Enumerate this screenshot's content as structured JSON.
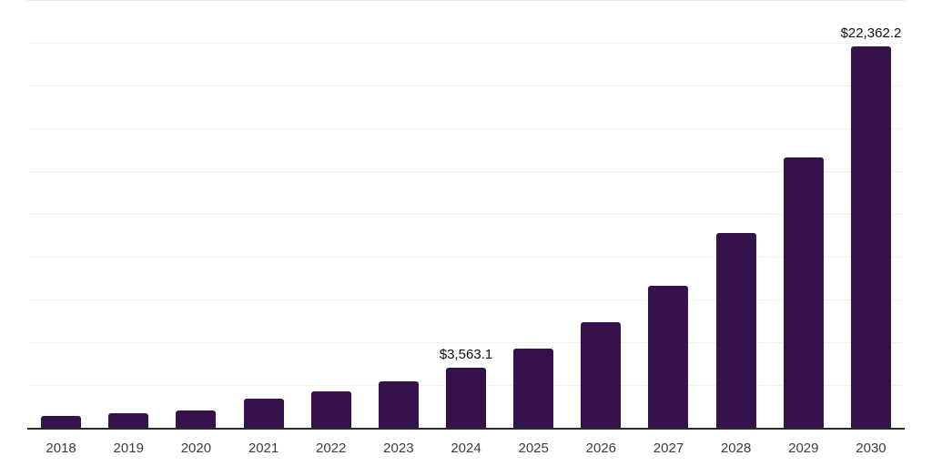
{
  "chart_data": {
    "type": "bar",
    "title": "",
    "xlabel": "",
    "ylabel": "",
    "categories": [
      "2018",
      "2019",
      "2020",
      "2021",
      "2022",
      "2023",
      "2024",
      "2025",
      "2026",
      "2027",
      "2028",
      "2029",
      "2030"
    ],
    "values": [
      770,
      930,
      1060,
      1750,
      2180,
      2760,
      3563.1,
      4700,
      6220,
      8350,
      11430,
      15850,
      22362.2
    ],
    "labeled_values": [
      {
        "category": "2024",
        "value": 3563.1,
        "text": "$3,563.1"
      },
      {
        "category": "2030",
        "value": 22362.2,
        "text": "$22,362.2"
      }
    ],
    "ylim": [
      0,
      25000
    ],
    "gridline_step": 2500,
    "grid": "horizontal-only",
    "y_tick_labels_visible": false,
    "legend": "none",
    "value_unit": "USD million"
  },
  "colors": {
    "bar": "#36124c",
    "grid": "#f1f1f1",
    "grid_top": "#e8e8e8",
    "axis": "#2a2a2a",
    "tick_label": "#3c3c3c",
    "value_label": "#0c0c0c",
    "background": "#ffffff"
  }
}
